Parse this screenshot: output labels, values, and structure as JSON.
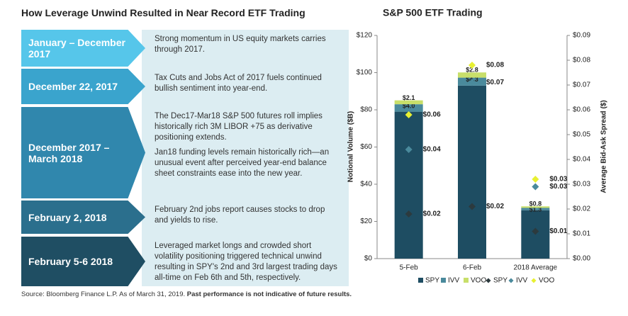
{
  "left": {
    "title": "How Leverage Unwind Resulted in Near Record ETF Trading",
    "rows": [
      {
        "label": "January – December 2017",
        "texts": [
          "Strong momentum in US equity markets carries through 2017."
        ]
      },
      {
        "label": "December 22, 2017",
        "texts": [
          "Tax Cuts and Jobs Act of 2017 fuels continued bullish sentiment into year-end."
        ]
      },
      {
        "label": "December 2017 – March 2018",
        "texts": [
          "The Dec17-Mar18 S&P 500 futures roll implies historically rich 3M LIBOR +75 as derivative positioning extends.",
          "Jan18 funding levels remain historically rich—an unusual event after perceived year-end balance sheet constraints ease into the new year."
        ]
      },
      {
        "label": "February 2, 2018",
        "texts": [
          "February 2nd jobs report causes stocks to drop and yields to rise."
        ]
      },
      {
        "label": "February 5-6 2018",
        "texts": [
          "Leveraged market longs and crowded short volatility positioning triggered technical unwind resulting in SPY's 2nd and 3rd largest trading days all-time on Feb 6th and 5th, respectively."
        ]
      }
    ]
  },
  "chart_data": {
    "type": "bar",
    "stacked": true,
    "title": "S&P 500 ETF Trading",
    "ylabel": "Notional Volume ($B)",
    "y2label": "Average Bid-Ask Spread ($)",
    "categories": [
      "5-Feb",
      "6-Feb",
      "2018 Average"
    ],
    "ylim": [
      0,
      120
    ],
    "yticks": [
      {
        "value": 0,
        "label": "$0"
      },
      {
        "value": 20,
        "label": "$20"
      },
      {
        "value": 40,
        "label": "$40"
      },
      {
        "value": 60,
        "label": "$60"
      },
      {
        "value": 80,
        "label": "$80"
      },
      {
        "value": 100,
        "label": "$100"
      },
      {
        "value": 120,
        "label": "$120"
      }
    ],
    "y2lim": [
      0,
      0.09
    ],
    "y2ticks": [
      {
        "value": 0,
        "label": "$0.00"
      },
      {
        "value": 0.01,
        "label": "$0.01"
      },
      {
        "value": 0.02,
        "label": "$0.02"
      },
      {
        "value": 0.03,
        "label": "$0.03"
      },
      {
        "value": 0.04,
        "label": "$0.04"
      },
      {
        "value": 0.05,
        "label": "$0.05"
      },
      {
        "value": 0.06,
        "label": "$0.06"
      },
      {
        "value": 0.07,
        "label": "$0.07"
      },
      {
        "value": 0.08,
        "label": "$0.08"
      },
      {
        "value": 0.09,
        "label": "$0.09"
      }
    ],
    "series": [
      {
        "name": "SPY",
        "color": "#1e4d62",
        "values": [
          79,
          93,
          26
        ]
      },
      {
        "name": "IVV",
        "color": "#4a8a9c",
        "values": [
          4.0,
          4.3,
          1.3
        ],
        "value_labels": [
          "$4.0",
          "$4.3",
          "$1.3"
        ]
      },
      {
        "name": "VOO",
        "color": "#c8df6a",
        "values": [
          2.1,
          2.8,
          0.8
        ],
        "value_labels": [
          "$2.1",
          "$2.8",
          "$0.8"
        ]
      },
      {
        "name": "SPY",
        "color": "#2c3a3e",
        "marker": "diamond",
        "axis": "y2",
        "values": [
          0.018,
          0.021,
          0.011
        ],
        "value_labels": [
          "$0.02",
          "$0.02",
          "$0.01"
        ]
      },
      {
        "name": "IVV",
        "color": "#4a8a9c",
        "marker": "diamond",
        "axis": "y2",
        "values": [
          0.044,
          0.071,
          0.029
        ],
        "value_labels": [
          "$0.04",
          "$0.07",
          "$0.03"
        ]
      },
      {
        "name": "VOO",
        "color": "#e8f032",
        "marker": "diamond",
        "axis": "y2",
        "values": [
          0.058,
          0.078,
          0.032
        ],
        "value_labels": [
          "$0.06",
          "$0.08",
          "$0.03"
        ]
      }
    ]
  },
  "source": {
    "text": "Source: Bloomberg Finance L.P. As of March 31, 2019.",
    "note": "Past performance is not indicative of future results."
  }
}
